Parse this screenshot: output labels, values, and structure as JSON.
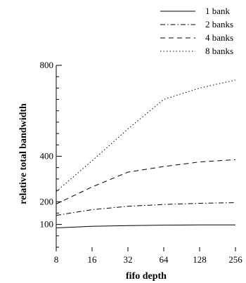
{
  "chart_data": {
    "type": "line",
    "title": "",
    "xlabel": "fifo depth",
    "ylabel": "relative total bandwidth",
    "x": [
      8,
      16,
      32,
      64,
      128,
      256
    ],
    "x_scale": "log2",
    "x_tick_labels": [
      "8",
      "16",
      "32",
      "64",
      "128",
      "256"
    ],
    "y_ticks": [
      100,
      200,
      400,
      800
    ],
    "y_tick_labels": [
      "100",
      "200",
      "400",
      "800"
    ],
    "ylim": [
      0,
      800
    ],
    "grid": false,
    "legend_position": "top-right",
    "series": [
      {
        "name": "1 bank",
        "dash": "solid",
        "values": [
          85,
          92,
          95,
          97,
          98,
          98
        ]
      },
      {
        "name": "2 banks",
        "dash": "dashdot",
        "values": [
          140,
          165,
          180,
          188,
          193,
          196
        ]
      },
      {
        "name": "4 banks",
        "dash": "dashed",
        "values": [
          190,
          265,
          330,
          355,
          375,
          385
        ]
      },
      {
        "name": "8 banks",
        "dash": "dotted",
        "values": [
          245,
          380,
          520,
          650,
          700,
          735
        ]
      }
    ]
  }
}
